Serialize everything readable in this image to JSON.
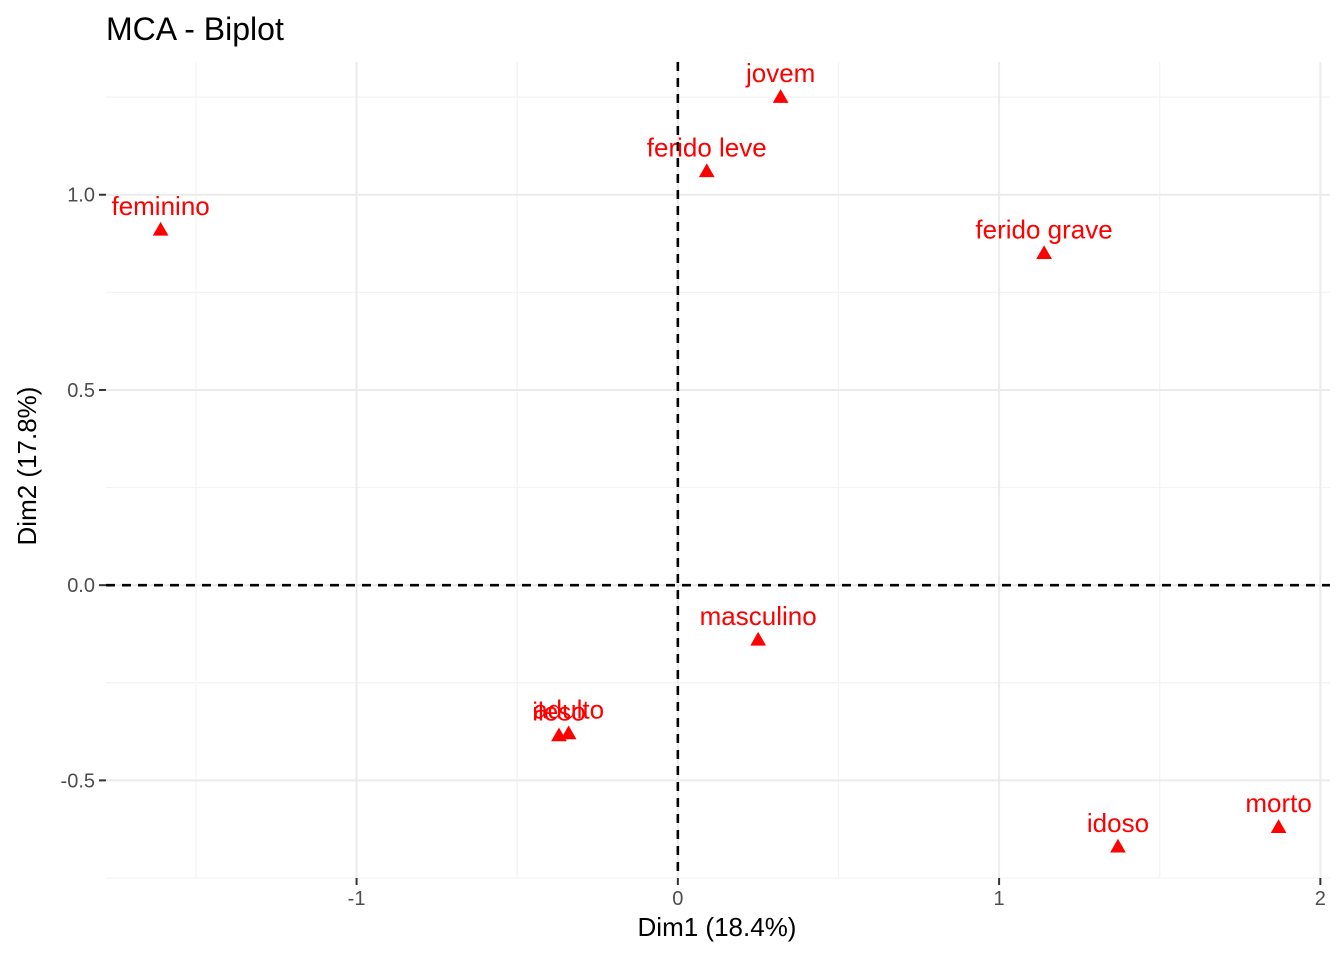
{
  "chart_data": {
    "type": "scatter",
    "title": "MCA - Biplot",
    "xlabel": "Dim1 (18.4%)",
    "ylabel": "Dim2 (17.8%)",
    "xlim": [
      -1.78,
      2.03
    ],
    "ylim": [
      -0.75,
      1.34
    ],
    "grid": true,
    "x_ticks": [
      {
        "value": -1,
        "label": "-1"
      },
      {
        "value": 0,
        "label": "0"
      },
      {
        "value": 1,
        "label": "1"
      },
      {
        "value": 2,
        "label": "2"
      }
    ],
    "y_ticks": [
      {
        "value": -0.5,
        "label": "-0.5"
      },
      {
        "value": 0,
        "label": "0.0"
      },
      {
        "value": 0.5,
        "label": "0.5"
      },
      {
        "value": 1.0,
        "label": "1.0"
      }
    ],
    "reference_lines": {
      "x": 0,
      "y": 0,
      "style": "dashed"
    },
    "point_color": "#FF0000",
    "marker": "triangle",
    "points": [
      {
        "label": "jovem",
        "x": 0.32,
        "y": 1.25
      },
      {
        "label": "ferido leve",
        "x": 0.09,
        "y": 1.06
      },
      {
        "label": "feminino",
        "x": -1.61,
        "y": 0.91
      },
      {
        "label": "ferido grave",
        "x": 1.14,
        "y": 0.85
      },
      {
        "label": "masculino",
        "x": 0.25,
        "y": -0.14
      },
      {
        "label": "adulto",
        "x": -0.34,
        "y": -0.38
      },
      {
        "label": "ileso",
        "x": -0.37,
        "y": -0.385
      },
      {
        "label": "idoso",
        "x": 1.37,
        "y": -0.67
      },
      {
        "label": "morto",
        "x": 1.87,
        "y": -0.62
      }
    ]
  }
}
